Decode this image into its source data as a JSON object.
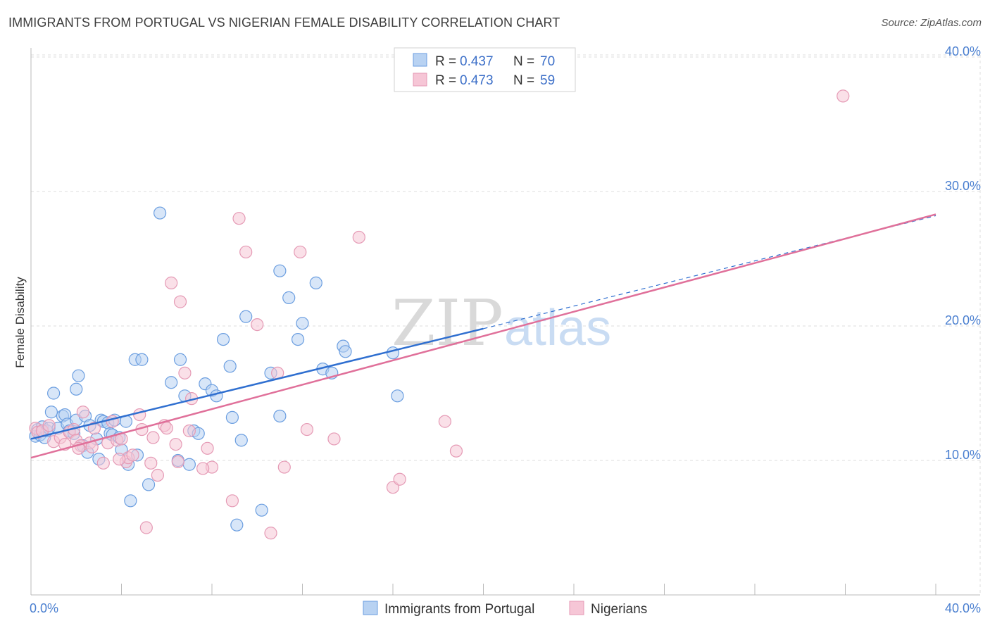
{
  "header": {
    "title": "IMMIGRANTS FROM PORTUGAL VS NIGERIAN FEMALE DISABILITY CORRELATION CHART",
    "source": "Source: ZipAtlas.com"
  },
  "colors": {
    "blue": "#2f6fd0",
    "blue_fill": "#b8d2f2",
    "pink": "#e0709a",
    "pink_fill": "#f6c6d6",
    "grid": "#dddddd"
  },
  "chart_data": {
    "type": "scatter",
    "title": "IMMIGRANTS FROM PORTUGAL VS NIGERIAN FEMALE DISABILITY CORRELATION CHART",
    "xlabel": "",
    "ylabel": "Female Disability",
    "xlim": [
      0,
      40
    ],
    "ylim": [
      0,
      42
    ],
    "x_tick_labels": [
      "0.0%",
      "40.0%"
    ],
    "y_ticks": [
      10,
      20,
      30,
      40
    ],
    "y_tick_labels": [
      "10.0%",
      "20.0%",
      "30.0%",
      "40.0%"
    ],
    "grid": true,
    "watermark": {
      "left": "ZIP",
      "right": "atlas"
    },
    "legend": {
      "position": "top-center",
      "entries": [
        {
          "r_label": "R =",
          "r_value": "0.437",
          "n_label": "N =",
          "n_value": "70"
        },
        {
          "r_label": "R =",
          "r_value": "0.473",
          "n_label": "N =",
          "n_value": "59"
        }
      ]
    },
    "series": [
      {
        "name": "Immigrants from Portugal",
        "color": "blue",
        "trend": {
          "x0": 0,
          "y0": 11.6,
          "x1": 20,
          "y1": 19.8,
          "dashed_to_x": 40,
          "dashed_to_y": 28.2
        },
        "points": [
          [
            0.2,
            11.8
          ],
          [
            0.3,
            12.3
          ],
          [
            0.4,
            11.9
          ],
          [
            0.5,
            12.5
          ],
          [
            0.6,
            11.7
          ],
          [
            0.7,
            12.2
          ],
          [
            0.8,
            12.4
          ],
          [
            0.9,
            13.6
          ],
          [
            1.0,
            15.0
          ],
          [
            1.2,
            12.4
          ],
          [
            1.4,
            13.3
          ],
          [
            1.5,
            13.4
          ],
          [
            1.6,
            12.7
          ],
          [
            1.7,
            12.2
          ],
          [
            1.9,
            12.0
          ],
          [
            2.0,
            13.0
          ],
          [
            2.0,
            15.3
          ],
          [
            2.1,
            16.3
          ],
          [
            2.3,
            11.1
          ],
          [
            2.4,
            13.3
          ],
          [
            2.5,
            10.6
          ],
          [
            2.6,
            12.6
          ],
          [
            2.9,
            11.6
          ],
          [
            3.0,
            10.1
          ],
          [
            3.1,
            13.0
          ],
          [
            3.2,
            12.9
          ],
          [
            3.4,
            12.8
          ],
          [
            3.5,
            12.0
          ],
          [
            3.6,
            11.9
          ],
          [
            3.7,
            13.0
          ],
          [
            3.9,
            11.7
          ],
          [
            4.0,
            10.8
          ],
          [
            4.2,
            12.9
          ],
          [
            4.3,
            9.7
          ],
          [
            4.6,
            17.5
          ],
          [
            4.7,
            10.4
          ],
          [
            4.9,
            17.5
          ],
          [
            5.2,
            8.2
          ],
          [
            5.7,
            28.4
          ],
          [
            6.2,
            15.8
          ],
          [
            6.5,
            10.0
          ],
          [
            6.6,
            17.5
          ],
          [
            6.8,
            14.8
          ],
          [
            7.0,
            9.7
          ],
          [
            7.2,
            12.2
          ],
          [
            7.4,
            12.0
          ],
          [
            7.7,
            15.7
          ],
          [
            8.0,
            15.2
          ],
          [
            8.2,
            14.8
          ],
          [
            8.5,
            19.0
          ],
          [
            8.8,
            17.0
          ],
          [
            8.9,
            13.2
          ],
          [
            9.1,
            5.2
          ],
          [
            9.3,
            11.5
          ],
          [
            9.5,
            20.7
          ],
          [
            10.2,
            6.3
          ],
          [
            10.6,
            16.5
          ],
          [
            11.0,
            13.3
          ],
          [
            11.0,
            24.1
          ],
          [
            11.4,
            22.1
          ],
          [
            11.8,
            19.0
          ],
          [
            12.0,
            20.2
          ],
          [
            12.6,
            23.2
          ],
          [
            12.9,
            16.8
          ],
          [
            13.3,
            16.5
          ],
          [
            13.8,
            18.5
          ],
          [
            13.9,
            18.1
          ],
          [
            16.0,
            18.0
          ],
          [
            16.2,
            14.8
          ],
          [
            4.4,
            7.0
          ]
        ]
      },
      {
        "name": "Nigerians",
        "color": "pink",
        "trend": {
          "x0": 0,
          "y0": 10.2,
          "x1": 40,
          "y1": 28.3
        },
        "points": [
          [
            0.2,
            12.4
          ],
          [
            0.3,
            12.1
          ],
          [
            0.5,
            12.2
          ],
          [
            0.8,
            12.6
          ],
          [
            1.0,
            11.4
          ],
          [
            1.3,
            11.7
          ],
          [
            1.5,
            11.2
          ],
          [
            1.7,
            12.1
          ],
          [
            1.9,
            12.3
          ],
          [
            2.0,
            11.5
          ],
          [
            2.2,
            11.1
          ],
          [
            2.3,
            13.6
          ],
          [
            2.6,
            11.3
          ],
          [
            2.7,
            11.0
          ],
          [
            2.8,
            12.4
          ],
          [
            3.2,
            9.8
          ],
          [
            3.4,
            11.3
          ],
          [
            3.6,
            12.9
          ],
          [
            3.8,
            11.5
          ],
          [
            4.0,
            11.6
          ],
          [
            4.2,
            9.9
          ],
          [
            4.3,
            10.2
          ],
          [
            4.5,
            10.4
          ],
          [
            4.8,
            13.4
          ],
          [
            4.9,
            12.3
          ],
          [
            5.1,
            5.0
          ],
          [
            5.3,
            9.8
          ],
          [
            5.6,
            8.9
          ],
          [
            5.9,
            12.6
          ],
          [
            6.0,
            12.4
          ],
          [
            6.2,
            23.2
          ],
          [
            6.4,
            11.2
          ],
          [
            6.5,
            9.9
          ],
          [
            6.6,
            21.8
          ],
          [
            6.8,
            16.5
          ],
          [
            7.0,
            12.2
          ],
          [
            7.1,
            14.6
          ],
          [
            7.8,
            10.9
          ],
          [
            8.0,
            9.5
          ],
          [
            8.9,
            7.0
          ],
          [
            9.2,
            28.0
          ],
          [
            9.5,
            25.5
          ],
          [
            10.0,
            20.1
          ],
          [
            10.6,
            4.6
          ],
          [
            10.9,
            16.5
          ],
          [
            11.2,
            9.5
          ],
          [
            11.9,
            25.5
          ],
          [
            12.2,
            12.3
          ],
          [
            13.4,
            11.6
          ],
          [
            14.5,
            26.6
          ],
          [
            16.0,
            8.0
          ],
          [
            16.3,
            8.6
          ],
          [
            18.3,
            12.9
          ],
          [
            18.8,
            10.7
          ],
          [
            35.9,
            37.1
          ],
          [
            3.9,
            10.1
          ],
          [
            2.1,
            10.9
          ],
          [
            7.6,
            9.4
          ],
          [
            5.4,
            11.7
          ]
        ]
      }
    ]
  }
}
